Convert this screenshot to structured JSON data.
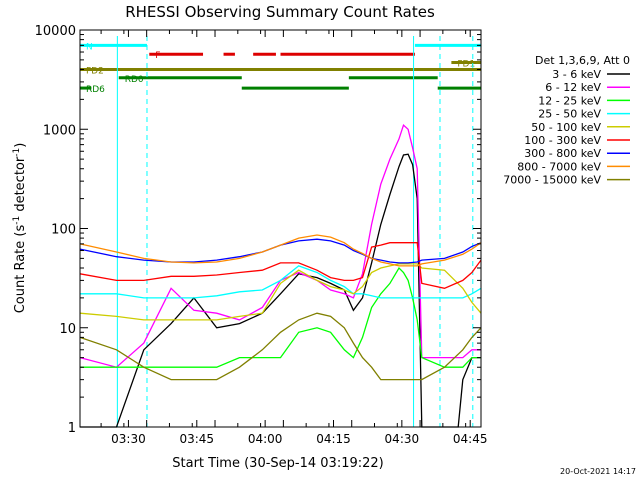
{
  "chart_data": {
    "type": "line",
    "title": "RHESSI Observing Summary Count Rates",
    "xlabel": "Start Time (30-Sep-14 03:19:22)",
    "ylabel_main": "Count Rate (s",
    "ylabel_sup1": "-1",
    "ylabel_mid": " detector",
    "ylabel_sup2": "-1",
    "ylabel_end": ")",
    "x_range_minutes": [
      0,
      88
    ],
    "y_range": [
      1,
      10000
    ],
    "y_scale": "log",
    "x_ticks": [
      {
        "label": "03:30",
        "t": 10.63
      },
      {
        "label": "03:45",
        "t": 25.63
      },
      {
        "label": "04:00",
        "t": 40.63
      },
      {
        "label": "04:15",
        "t": 55.63
      },
      {
        "label": "04:30",
        "t": 70.63
      },
      {
        "label": "04:45",
        "t": 85.63
      }
    ],
    "y_ticks": [
      {
        "label": "1",
        "v": 1
      },
      {
        "label": "10",
        "v": 10
      },
      {
        "label": "100",
        "v": 100
      },
      {
        "label": "1000",
        "v": 1000
      },
      {
        "label": "10000",
        "v": 10000
      }
    ],
    "legend_header": "Det 1,3,6,9, Att 0",
    "series": [
      {
        "name": "3 - 6 keV",
        "color": "#000000",
        "points": [
          [
            0,
            1
          ],
          [
            5,
            1
          ],
          [
            8,
            1
          ],
          [
            14,
            6
          ],
          [
            20,
            11
          ],
          [
            25,
            20
          ],
          [
            30,
            10
          ],
          [
            35,
            11
          ],
          [
            40,
            14
          ],
          [
            44,
            22
          ],
          [
            48,
            35
          ],
          [
            52,
            32
          ],
          [
            55,
            28
          ],
          [
            58,
            24
          ],
          [
            60,
            15
          ],
          [
            62,
            20
          ],
          [
            64,
            45
          ],
          [
            66,
            110
          ],
          [
            68,
            220
          ],
          [
            70,
            420
          ],
          [
            71,
            550
          ],
          [
            72,
            560
          ],
          [
            73,
            440
          ],
          [
            74,
            200
          ],
          [
            75,
            1
          ],
          [
            79,
            1
          ],
          [
            80,
            1
          ],
          [
            82,
            1
          ],
          [
            83,
            1
          ],
          [
            84,
            3
          ],
          [
            86,
            5
          ],
          [
            88,
            5
          ]
        ]
      },
      {
        "name": "6 - 12 keV",
        "color": "#ff00ff",
        "points": [
          [
            0,
            5
          ],
          [
            8,
            4
          ],
          [
            14,
            7
          ],
          [
            20,
            25
          ],
          [
            25,
            15
          ],
          [
            30,
            14
          ],
          [
            35,
            12
          ],
          [
            40,
            16
          ],
          [
            44,
            30
          ],
          [
            48,
            36
          ],
          [
            52,
            30
          ],
          [
            55,
            24
          ],
          [
            58,
            22
          ],
          [
            60,
            20
          ],
          [
            62,
            35
          ],
          [
            64,
            110
          ],
          [
            66,
            280
          ],
          [
            68,
            500
          ],
          [
            70,
            800
          ],
          [
            71,
            1100
          ],
          [
            72,
            1000
          ],
          [
            73,
            650
          ],
          [
            74,
            400
          ],
          [
            75,
            5
          ],
          [
            80,
            5
          ],
          [
            84,
            5
          ],
          [
            86,
            6
          ],
          [
            88,
            6
          ]
        ]
      },
      {
        "name": "12 - 25 keV",
        "color": "#00ff00",
        "points": [
          [
            0,
            4
          ],
          [
            8,
            4
          ],
          [
            14,
            4
          ],
          [
            20,
            4
          ],
          [
            25,
            4
          ],
          [
            30,
            4
          ],
          [
            35,
            5
          ],
          [
            40,
            5
          ],
          [
            44,
            5
          ],
          [
            48,
            9
          ],
          [
            52,
            10
          ],
          [
            55,
            9
          ],
          [
            58,
            6
          ],
          [
            60,
            5
          ],
          [
            62,
            8
          ],
          [
            64,
            16
          ],
          [
            66,
            22
          ],
          [
            68,
            28
          ],
          [
            70,
            40
          ],
          [
            71,
            36
          ],
          [
            72,
            30
          ],
          [
            73,
            20
          ],
          [
            74,
            12
          ],
          [
            75,
            5
          ],
          [
            80,
            4
          ],
          [
            84,
            4
          ],
          [
            86,
            5
          ],
          [
            88,
            5
          ]
        ]
      },
      {
        "name": "25 - 50 keV",
        "color": "#00ffff",
        "points": [
          [
            0,
            22
          ],
          [
            8,
            22
          ],
          [
            14,
            20
          ],
          [
            20,
            20
          ],
          [
            25,
            20
          ],
          [
            30,
            21
          ],
          [
            35,
            23
          ],
          [
            40,
            24
          ],
          [
            44,
            30
          ],
          [
            48,
            42
          ],
          [
            52,
            36
          ],
          [
            55,
            30
          ],
          [
            58,
            26
          ],
          [
            60,
            22
          ],
          [
            62,
            22
          ],
          [
            64,
            21
          ],
          [
            66,
            20
          ],
          [
            68,
            20
          ],
          [
            70,
            20
          ],
          [
            72,
            20
          ],
          [
            74,
            20
          ],
          [
            75,
            20
          ],
          [
            80,
            20
          ],
          [
            84,
            20
          ],
          [
            86,
            22
          ],
          [
            88,
            25
          ]
        ]
      },
      {
        "name": "50 - 100 keV",
        "color": "#cccc00",
        "points": [
          [
            0,
            14
          ],
          [
            8,
            13
          ],
          [
            14,
            12
          ],
          [
            20,
            12
          ],
          [
            25,
            12
          ],
          [
            30,
            12
          ],
          [
            35,
            13
          ],
          [
            40,
            14
          ],
          [
            44,
            28
          ],
          [
            48,
            38
          ],
          [
            52,
            30
          ],
          [
            55,
            26
          ],
          [
            58,
            24
          ],
          [
            60,
            22
          ],
          [
            62,
            26
          ],
          [
            64,
            36
          ],
          [
            66,
            40
          ],
          [
            68,
            42
          ],
          [
            70,
            44
          ],
          [
            72,
            44
          ],
          [
            74,
            44
          ],
          [
            75,
            40
          ],
          [
            80,
            38
          ],
          [
            84,
            25
          ],
          [
            86,
            18
          ],
          [
            88,
            14
          ]
        ]
      },
      {
        "name": "100 - 300 keV",
        "color": "#ff0000",
        "points": [
          [
            0,
            35
          ],
          [
            8,
            30
          ],
          [
            14,
            30
          ],
          [
            20,
            33
          ],
          [
            25,
            33
          ],
          [
            30,
            34
          ],
          [
            35,
            36
          ],
          [
            40,
            38
          ],
          [
            44,
            45
          ],
          [
            48,
            45
          ],
          [
            52,
            38
          ],
          [
            55,
            32
          ],
          [
            58,
            30
          ],
          [
            60,
            30
          ],
          [
            62,
            32
          ],
          [
            64,
            65
          ],
          [
            66,
            68
          ],
          [
            68,
            72
          ],
          [
            70,
            72
          ],
          [
            72,
            72
          ],
          [
            74,
            72
          ],
          [
            75,
            28
          ],
          [
            80,
            25
          ],
          [
            84,
            30
          ],
          [
            86,
            36
          ],
          [
            88,
            48
          ]
        ]
      },
      {
        "name": "300 - 800 keV",
        "color": "#0000ff",
        "points": [
          [
            0,
            62
          ],
          [
            8,
            52
          ],
          [
            14,
            48
          ],
          [
            20,
            46
          ],
          [
            25,
            46
          ],
          [
            30,
            48
          ],
          [
            35,
            52
          ],
          [
            40,
            58
          ],
          [
            44,
            68
          ],
          [
            48,
            75
          ],
          [
            52,
            78
          ],
          [
            55,
            75
          ],
          [
            58,
            68
          ],
          [
            60,
            60
          ],
          [
            62,
            55
          ],
          [
            64,
            50
          ],
          [
            66,
            48
          ],
          [
            68,
            46
          ],
          [
            70,
            45
          ],
          [
            72,
            45
          ],
          [
            74,
            46
          ],
          [
            75,
            48
          ],
          [
            80,
            50
          ],
          [
            84,
            58
          ],
          [
            86,
            66
          ],
          [
            88,
            72
          ]
        ]
      },
      {
        "name": "800 - 7000 keV",
        "color": "#ff8c00",
        "points": [
          [
            0,
            70
          ],
          [
            8,
            58
          ],
          [
            14,
            50
          ],
          [
            20,
            46
          ],
          [
            25,
            45
          ],
          [
            30,
            46
          ],
          [
            35,
            50
          ],
          [
            40,
            58
          ],
          [
            44,
            68
          ],
          [
            48,
            80
          ],
          [
            52,
            86
          ],
          [
            55,
            82
          ],
          [
            58,
            72
          ],
          [
            60,
            62
          ],
          [
            62,
            56
          ],
          [
            64,
            50
          ],
          [
            66,
            46
          ],
          [
            68,
            44
          ],
          [
            70,
            42
          ],
          [
            72,
            42
          ],
          [
            74,
            42
          ],
          [
            75,
            44
          ],
          [
            80,
            48
          ],
          [
            84,
            55
          ],
          [
            86,
            62
          ],
          [
            88,
            72
          ]
        ]
      },
      {
        "name": "7000 - 15000 keV",
        "color": "#808000",
        "points": [
          [
            0,
            8
          ],
          [
            8,
            6
          ],
          [
            14,
            4
          ],
          [
            20,
            3
          ],
          [
            25,
            3
          ],
          [
            30,
            3
          ],
          [
            35,
            4
          ],
          [
            40,
            6
          ],
          [
            44,
            9
          ],
          [
            48,
            12
          ],
          [
            52,
            14
          ],
          [
            55,
            13
          ],
          [
            58,
            10
          ],
          [
            60,
            7
          ],
          [
            62,
            5
          ],
          [
            64,
            4
          ],
          [
            66,
            3
          ],
          [
            68,
            3
          ],
          [
            70,
            3
          ],
          [
            72,
            3
          ],
          [
            74,
            3
          ],
          [
            75,
            3
          ],
          [
            80,
            4
          ],
          [
            84,
            6
          ],
          [
            86,
            8
          ],
          [
            88,
            10
          ]
        ]
      }
    ],
    "flag_bars": [
      {
        "label": "N",
        "color": "#00ffff",
        "y": 7000,
        "segments": [
          [
            0,
            14.7
          ],
          [
            73.5,
            88
          ]
        ]
      },
      {
        "label": "F",
        "color": "#dd0000",
        "y": 5700,
        "segments": [
          [
            15.2,
            27
          ],
          [
            31.5,
            34
          ],
          [
            38,
            43
          ],
          [
            44,
            73.5
          ]
        ]
      },
      {
        "label": "FD1",
        "color": "#808000",
        "y": 4700,
        "segments": [
          [
            81.5,
            88
          ]
        ]
      },
      {
        "label": "FD2",
        "color": "#808000",
        "y": 4000,
        "segments": [
          [
            0,
            88
          ]
        ]
      },
      {
        "label": "RD0",
        "color": "#008000",
        "y": 3300,
        "segments": [
          [
            8.5,
            35.5
          ],
          [
            59,
            78.5
          ]
        ]
      },
      {
        "label": "RD6",
        "color": "#008000",
        "y": 2600,
        "segments": [
          [
            0,
            2.5
          ],
          [
            35.5,
            59
          ],
          [
            78.5,
            88
          ]
        ]
      }
    ],
    "vlines": [
      {
        "t": 8.2,
        "color": "#00ffff",
        "style": "solid"
      },
      {
        "t": 14.7,
        "color": "#00ffff",
        "style": "dashed"
      },
      {
        "t": 73.2,
        "color": "#00ffff",
        "style": "solid"
      },
      {
        "t": 79.0,
        "color": "#00ffff",
        "style": "dashed"
      },
      {
        "t": 86.2,
        "color": "#00ffff",
        "style": "dashed"
      }
    ]
  },
  "footer_timestamp": "20-Oct-2021 14:17"
}
